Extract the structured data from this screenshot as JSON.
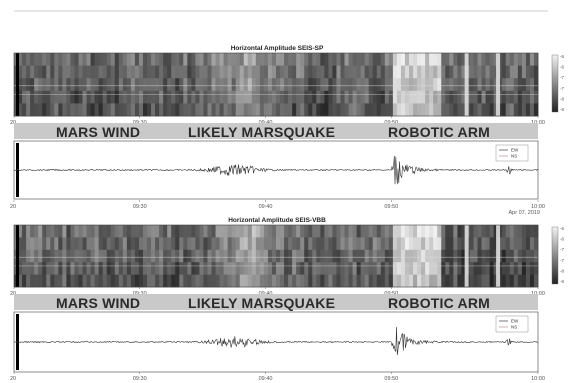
{
  "chart_data": [
    {
      "type": "heatmap",
      "title": "Horizontal Amplitude SEIS-SP",
      "x_ticks": [
        "20",
        "09:30",
        "09:40",
        "09:50",
        "10:00"
      ],
      "colorbar_ticks": [
        "-6",
        "-6",
        "-7",
        "-7",
        "-8",
        "-8"
      ]
    },
    {
      "type": "line",
      "x_ticks": [
        "20",
        "09:30",
        "09:40",
        "09:50",
        "10:00"
      ],
      "series": [
        {
          "name": "EW"
        },
        {
          "name": "NS"
        }
      ],
      "legend": "top-right"
    },
    {
      "type": "heatmap",
      "title": "Horizontal Amplitude SEIS-VBB",
      "x_ticks": [
        "20",
        "09:30",
        "09:40",
        "09:50",
        "10:00"
      ],
      "colorbar_ticks": [
        "-6",
        "-6",
        "-7",
        "-7",
        "-8",
        "-8"
      ]
    },
    {
      "type": "line",
      "x_ticks": [
        "20",
        "09:30",
        "09:40",
        "09:50",
        "10:00"
      ],
      "series": [
        {
          "name": "EW"
        },
        {
          "name": "NS"
        }
      ],
      "legend": "top-right"
    }
  ],
  "annotations": {
    "wind": "MARS WIND",
    "quake": "LIKELY MARSQUAKE",
    "arm": "ROBOTIC ARM"
  },
  "date_label": "Apr 07, 2019",
  "colors": {
    "frame": "#444444",
    "band": "#c8c8c8",
    "trace": "#333333"
  }
}
